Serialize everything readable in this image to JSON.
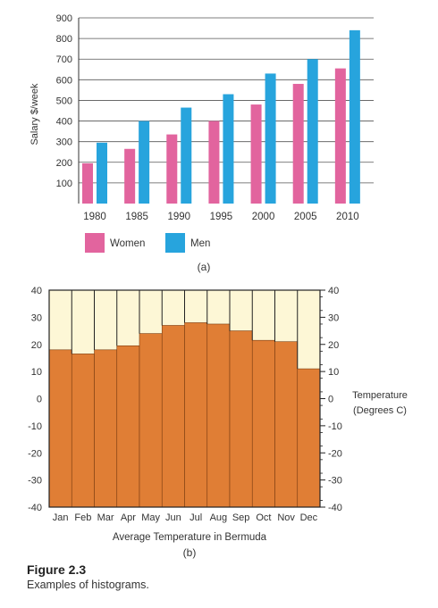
{
  "figure": {
    "number": "Figure 2.3",
    "caption": "Examples of histograms."
  },
  "chart_data": [
    {
      "type": "bar",
      "panel_label": "(a)",
      "ylabel": "Salary $/week",
      "xlabel": "",
      "categories": [
        "1980",
        "1985",
        "1990",
        "1995",
        "2000",
        "2005",
        "2010"
      ],
      "series": [
        {
          "name": "Women",
          "color": "#e2649e",
          "values": [
            195,
            265,
            335,
            400,
            480,
            580,
            655
          ]
        },
        {
          "name": "Men",
          "color": "#27a4dd",
          "values": [
            295,
            400,
            465,
            530,
            630,
            700,
            840
          ]
        }
      ],
      "ylim": [
        0,
        900
      ],
      "yticks": [
        100,
        200,
        300,
        400,
        500,
        600,
        700,
        800,
        900
      ],
      "grid": true,
      "legend_position": "bottom"
    },
    {
      "type": "bar",
      "panel_label": "(b)",
      "xlabel": "Average Temperature in Bermuda",
      "right_axis_label": [
        "Temperature",
        "(Degrees C)"
      ],
      "categories": [
        "Jan",
        "Feb",
        "Mar",
        "Apr",
        "May",
        "Jun",
        "Jul",
        "Aug",
        "Sep",
        "Oct",
        "Nov",
        "Dec"
      ],
      "values": [
        18,
        16.5,
        18,
        19.5,
        24,
        27,
        28,
        27.5,
        25,
        21.5,
        21,
        11
      ],
      "bar_color": "#e07e35",
      "background_color": "#fdf7d6",
      "ylim": [
        -40,
        40
      ],
      "yticks_left": [
        "40",
        "30",
        "20",
        "10",
        "0",
        "-10",
        "-20",
        "-30",
        "-40"
      ],
      "yticks_right": [
        "40",
        "30",
        "20",
        "10",
        "0",
        "-10",
        "-20",
        "-30",
        "-40"
      ],
      "grid": false
    }
  ]
}
